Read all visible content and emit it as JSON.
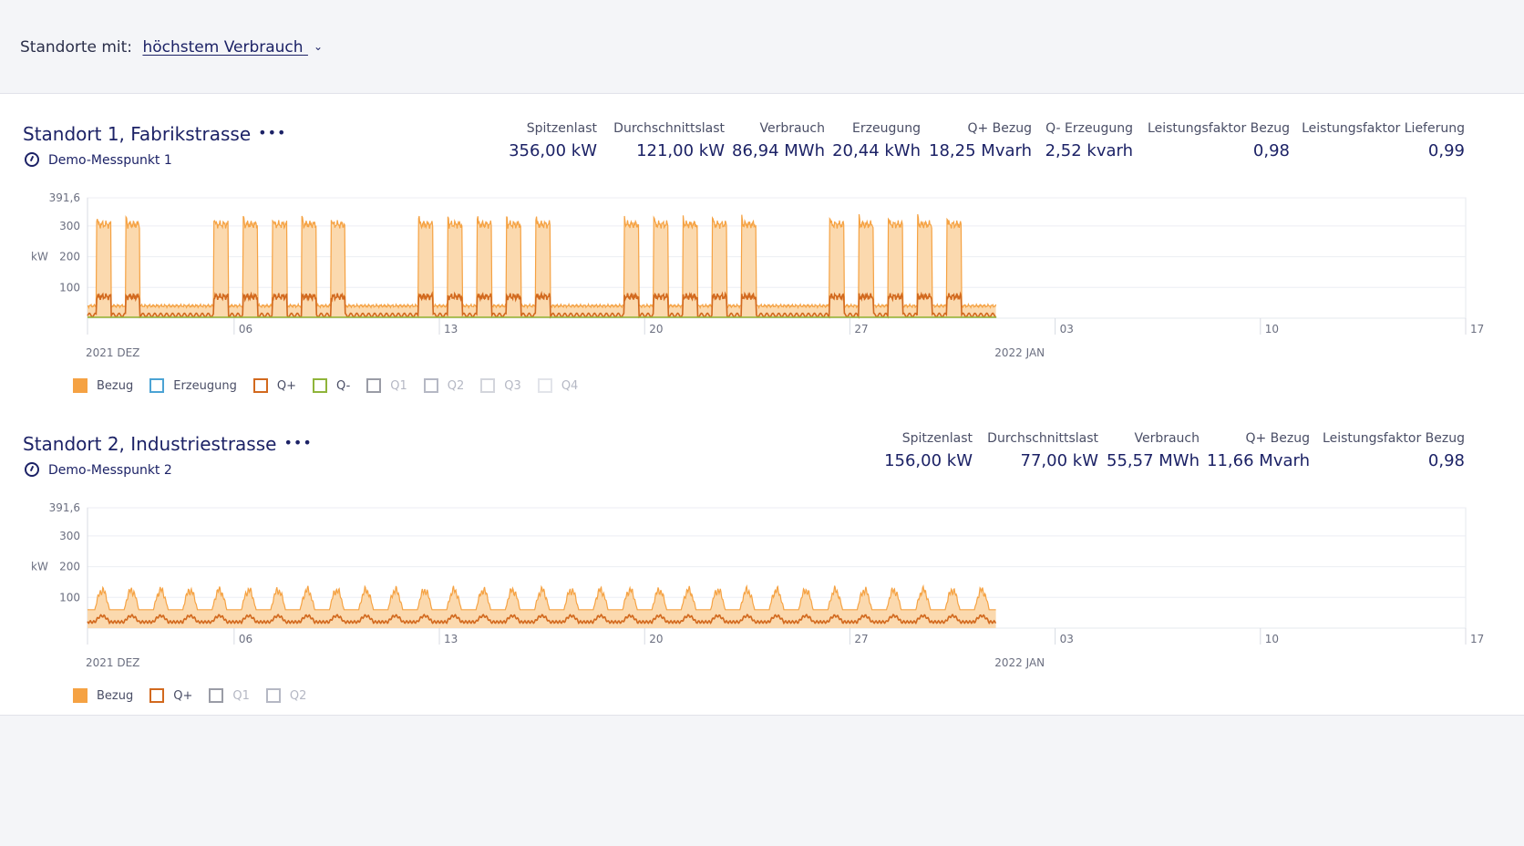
{
  "filter": {
    "label": "Standorte mit:",
    "value": "höchstem Verbrauch",
    "chevron_icon": "chevron-down-icon"
  },
  "colors": {
    "bezug": "#f5a243",
    "qplus": "#d2691e",
    "qminus": "#8fb43a",
    "erzeugung": "#4ba3d4",
    "text": "#1c2266"
  },
  "sites": [
    {
      "title": "Standort 1, Fabrikstrasse",
      "more": "•••",
      "meter": "Demo-Messpunkt 1",
      "kpis": [
        {
          "label": "Spitzenlast",
          "value": "356,00 kW"
        },
        {
          "label": "Durchschnittslast",
          "value": "121,00 kW"
        },
        {
          "label": "Verbrauch",
          "value": "86,94 MWh"
        },
        {
          "label": "Erzeugung",
          "value": "20,44 kWh"
        },
        {
          "label": "Q+ Bezug",
          "value": "18,25 Mvarh"
        },
        {
          "label": "Q- Erzeugung",
          "value": "2,52 kvarh"
        },
        {
          "label": "Leistungsfaktor Bezug",
          "value": "0,98"
        },
        {
          "label": "Leistungsfaktor Lieferung",
          "value": "0,99"
        }
      ],
      "legend": [
        {
          "label": "Bezug",
          "color": "#f5a243",
          "filled": true,
          "active": true
        },
        {
          "label": "Erzeugung",
          "color": "#4ba3d4",
          "filled": false,
          "active": true
        },
        {
          "label": "Q+",
          "color": "#d2691e",
          "filled": false,
          "active": true
        },
        {
          "label": "Q-",
          "color": "#8fb43a",
          "filled": false,
          "active": true
        },
        {
          "label": "Q1",
          "color": "#9a9ca6",
          "filled": false,
          "active": false
        },
        {
          "label": "Q2",
          "color": "#b5b8c4",
          "filled": false,
          "active": false
        },
        {
          "label": "Q3",
          "color": "#d3d5dc",
          "filled": false,
          "active": false
        },
        {
          "label": "Q4",
          "color": "#e2e4ea",
          "filled": false,
          "active": false
        }
      ]
    },
    {
      "title": "Standort 2, Industriestrasse",
      "more": "•••",
      "meter": "Demo-Messpunkt 2",
      "kpis": [
        {
          "label": "Spitzenlast",
          "value": "156,00 kW"
        },
        {
          "label": "Durchschnittslast",
          "value": "77,00 kW"
        },
        {
          "label": "Verbrauch",
          "value": "55,57 MWh"
        },
        {
          "label": "Q+ Bezug",
          "value": "11,66 Mvarh"
        },
        {
          "label": "Leistungsfaktor Bezug",
          "value": "0,98"
        }
      ],
      "legend": [
        {
          "label": "Bezug",
          "color": "#f5a243",
          "filled": true,
          "active": true
        },
        {
          "label": "Q+",
          "color": "#d2691e",
          "filled": false,
          "active": true
        },
        {
          "label": "Q1",
          "color": "#9a9ca6",
          "filled": false,
          "active": false
        },
        {
          "label": "Q2",
          "color": "#b5b8c4",
          "filled": false,
          "active": false
        }
      ]
    }
  ],
  "chart_data": [
    {
      "type": "area",
      "title": "",
      "ylabel": "kW",
      "ylim": [
        0,
        391.6
      ],
      "yticks": [
        "391,6",
        "300",
        "200",
        "100"
      ],
      "ytick_values": [
        391.6,
        300,
        200,
        100
      ],
      "xlim_days": [
        1,
        48
      ],
      "xticks": [
        {
          "day": 6,
          "label": "06"
        },
        {
          "day": 13,
          "label": "13"
        },
        {
          "day": 20,
          "label": "20"
        },
        {
          "day": 27,
          "label": "27"
        },
        {
          "day": 34,
          "label": "03"
        },
        {
          "day": 41,
          "label": "10"
        },
        {
          "day": 48,
          "label": "17"
        }
      ],
      "period_labels": [
        {
          "day": 1,
          "label": "2021 DEZ"
        },
        {
          "day": 32,
          "label": "2022 JAN"
        }
      ],
      "data_end_day": 31,
      "series": [
        {
          "name": "Bezug",
          "weekday_peak_kW": 330,
          "weekend_peak_kW": 0,
          "base_kW": 40
        },
        {
          "name": "Q+",
          "weekday_peak_kW": 90,
          "base_kW": 10
        },
        {
          "name": "Q-",
          "level_kW": 3
        }
      ]
    },
    {
      "type": "area",
      "title": "",
      "ylabel": "kW",
      "ylim": [
        0,
        391.6
      ],
      "yticks": [
        "391,6",
        "300",
        "200",
        "100"
      ],
      "ytick_values": [
        391.6,
        300,
        200,
        100
      ],
      "xlim_days": [
        1,
        48
      ],
      "xticks": [
        {
          "day": 6,
          "label": "06"
        },
        {
          "day": 13,
          "label": "13"
        },
        {
          "day": 20,
          "label": "20"
        },
        {
          "day": 27,
          "label": "27"
        },
        {
          "day": 34,
          "label": "03"
        },
        {
          "day": 41,
          "label": "10"
        },
        {
          "day": 48,
          "label": "17"
        }
      ],
      "period_labels": [
        {
          "day": 1,
          "label": "2021 DEZ"
        },
        {
          "day": 32,
          "label": "2022 JAN"
        }
      ],
      "data_end_day": 31,
      "series": [
        {
          "name": "Bezug",
          "daily_peak_kW": 130,
          "base_kW": 60
        },
        {
          "name": "Q+",
          "daily_peak_kW": 40,
          "base_kW": 20
        }
      ]
    }
  ]
}
